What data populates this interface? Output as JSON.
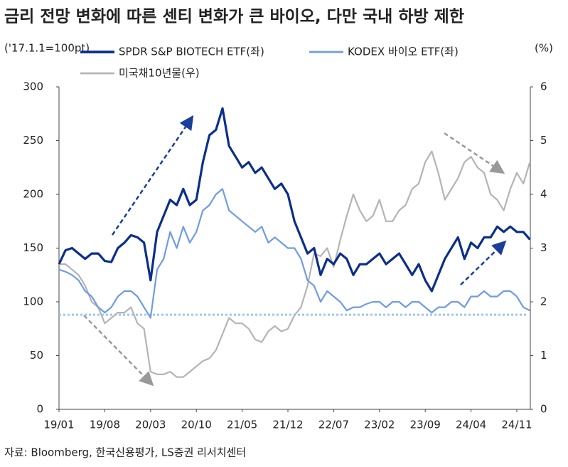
{
  "chart_data": {
    "type": "line",
    "title": "금리 전망 변화에 따른 센티 변화가 큰 바이오, 다만 국내 하방 제한",
    "y_label": "('17.1.1=100pt)",
    "y2_label": "(%)",
    "source": "자료: Bloomberg, 한국신용평가, LS증권 리서치센터",
    "categories": [
      "19/01",
      null,
      null,
      null,
      null,
      null,
      null,
      "19/08",
      null,
      null,
      null,
      null,
      null,
      null,
      "20/03",
      null,
      null,
      null,
      null,
      null,
      null,
      "20/10",
      null,
      null,
      null,
      null,
      null,
      null,
      "21/05",
      null,
      null,
      null,
      null,
      null,
      null,
      "21/12",
      null,
      null,
      null,
      null,
      null,
      null,
      "22/07",
      null,
      null,
      null,
      null,
      null,
      null,
      "23/02",
      null,
      null,
      null,
      null,
      null,
      null,
      "23/09",
      null,
      null,
      null,
      null,
      null,
      null,
      "24/04",
      null,
      null,
      null,
      null,
      null,
      null,
      "24/11",
      null,
      null
    ],
    "ylim": [
      0,
      300
    ],
    "yticks": [
      0,
      50,
      100,
      150,
      200,
      250,
      300
    ],
    "y2lim": [
      0,
      6
    ],
    "y2ticks": [
      0,
      1,
      2,
      3,
      4,
      5,
      6
    ],
    "reference_line": {
      "value": 88,
      "color": "#9fc5f0"
    },
    "series": [
      {
        "name": "SPDR S&P BIOTECH ETF(좌)",
        "color": "#0b2f8a",
        "width": 3.2,
        "values": [
          135,
          148,
          150,
          145,
          140,
          145,
          145,
          138,
          137,
          150,
          155,
          162,
          160,
          155,
          120,
          165,
          180,
          195,
          190,
          205,
          190,
          195,
          230,
          255,
          260,
          280,
          245,
          235,
          225,
          230,
          220,
          225,
          215,
          205,
          210,
          200,
          175,
          160,
          145,
          150,
          125,
          140,
          135,
          145,
          140,
          125,
          135,
          135,
          140,
          145,
          135,
          140,
          145,
          135,
          125,
          135,
          120,
          110,
          125,
          140,
          150,
          160,
          140,
          155,
          150,
          160,
          160,
          170,
          165,
          170,
          165,
          165,
          158
        ]
      },
      {
        "name": "KODEX 바이오 ETF(좌)",
        "color": "#6f9be6",
        "width": 2.2,
        "values": [
          130,
          128,
          125,
          120,
          110,
          105,
          95,
          90,
          95,
          105,
          110,
          110,
          105,
          95,
          85,
          130,
          140,
          165,
          150,
          170,
          155,
          165,
          185,
          190,
          200,
          205,
          185,
          180,
          175,
          170,
          165,
          170,
          155,
          160,
          155,
          150,
          150,
          140,
          120,
          115,
          100,
          110,
          105,
          100,
          92,
          95,
          95,
          98,
          100,
          100,
          95,
          100,
          100,
          95,
          100,
          100,
          95,
          90,
          95,
          95,
          100,
          100,
          95,
          105,
          105,
          110,
          105,
          105,
          110,
          110,
          105,
          95,
          92
        ]
      },
      {
        "name": "미국채10년물(우)",
        "color": "#b4b4b4",
        "width": 2.2,
        "axis": "y2",
        "values": [
          2.7,
          2.7,
          2.6,
          2.5,
          2.3,
          2.0,
          1.9,
          1.6,
          1.7,
          1.8,
          1.8,
          1.9,
          1.6,
          1.5,
          0.7,
          0.65,
          0.65,
          0.7,
          0.6,
          0.6,
          0.7,
          0.8,
          0.9,
          0.95,
          1.1,
          1.4,
          1.7,
          1.6,
          1.6,
          1.5,
          1.3,
          1.25,
          1.45,
          1.55,
          1.45,
          1.5,
          1.75,
          1.9,
          2.3,
          2.9,
          2.85,
          3.0,
          2.65,
          3.15,
          3.6,
          4.0,
          3.7,
          3.5,
          3.6,
          3.9,
          3.5,
          3.5,
          3.7,
          3.8,
          4.1,
          4.2,
          4.6,
          4.8,
          4.4,
          3.9,
          4.1,
          4.3,
          4.6,
          4.7,
          4.5,
          4.4,
          4.0,
          3.9,
          3.7,
          4.1,
          4.4,
          4.2,
          4.6
        ]
      }
    ]
  }
}
